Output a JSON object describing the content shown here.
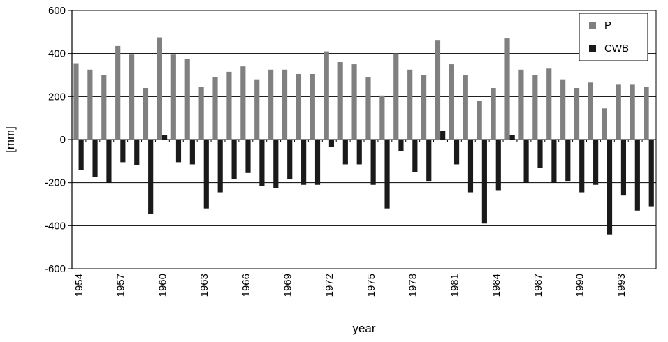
{
  "chart_data": {
    "type": "bar",
    "xlabel": "year",
    "ylabel": "[mm]",
    "ylim": [
      -600,
      600
    ],
    "yticks": [
      600,
      400,
      200,
      0,
      -200,
      -400,
      -600
    ],
    "grid": true,
    "legend_position": "top-right",
    "categories": [
      "1954",
      "1955",
      "1956",
      "1957",
      "1958",
      "1959",
      "1960",
      "1961",
      "1962",
      "1963",
      "1964",
      "1965",
      "1966",
      "1967",
      "1968",
      "1969",
      "1970",
      "1971",
      "1972",
      "1973",
      "1974",
      "1975",
      "1976",
      "1977",
      "1978",
      "1979",
      "1980",
      "1981",
      "1982",
      "1983",
      "1984",
      "1985",
      "1986",
      "1987",
      "1988",
      "1989",
      "1990",
      "1991",
      "1992",
      "1993",
      "1994",
      "1995"
    ],
    "xtick_labels": [
      "1954",
      "1957",
      "1960",
      "1963",
      "1966",
      "1969",
      "1972",
      "1975",
      "1978",
      "1981",
      "1984",
      "1987",
      "1990",
      "1993"
    ],
    "series": [
      {
        "name": "P",
        "color": "#808080",
        "values": [
          355,
          325,
          300,
          435,
          395,
          240,
          475,
          395,
          375,
          245,
          290,
          315,
          340,
          280,
          325,
          325,
          305,
          305,
          410,
          360,
          350,
          290,
          205,
          400,
          325,
          300,
          460,
          350,
          300,
          180,
          240,
          470,
          325,
          300,
          330,
          280,
          240,
          265,
          145,
          255,
          255,
          245
        ]
      },
      {
        "name": "CWB",
        "color": "#1a1a1a",
        "values": [
          -140,
          -175,
          -200,
          -105,
          -120,
          -345,
          20,
          -105,
          -115,
          -320,
          -245,
          -185,
          -155,
          -215,
          -225,
          -185,
          -210,
          -210,
          -35,
          -115,
          -115,
          -210,
          -320,
          -55,
          -150,
          -195,
          40,
          -115,
          -245,
          -390,
          -235,
          20,
          -200,
          -130,
          -200,
          -195,
          -245,
          -210,
          -440,
          -260,
          -330,
          -310
        ]
      }
    ]
  }
}
